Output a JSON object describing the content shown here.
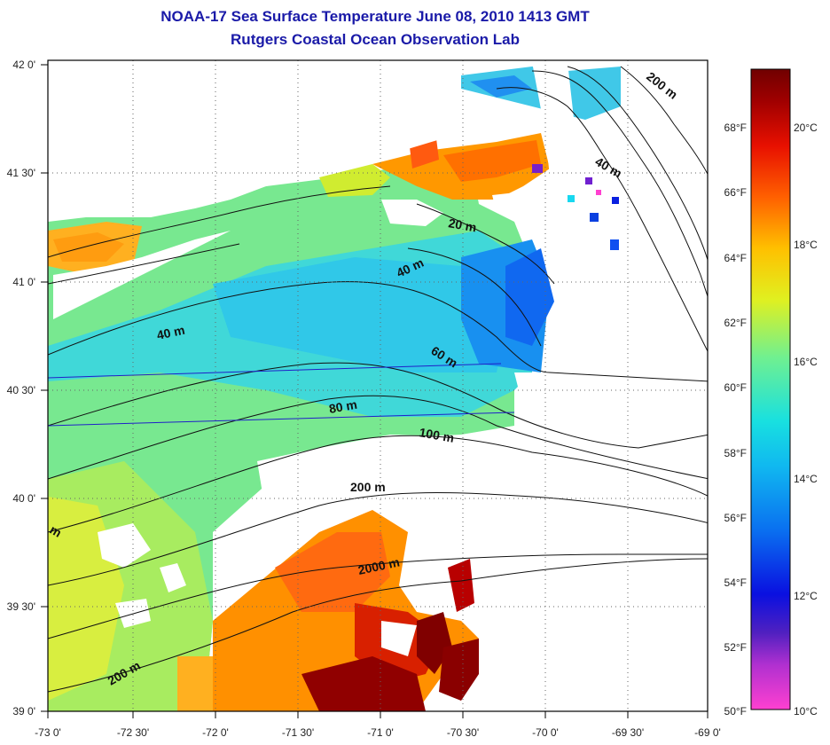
{
  "title": "NOAA-17 Sea Surface Temperature June 08, 2010 1413 GMT",
  "subtitle": "Rutgers Coastal Ocean Observation Lab",
  "lat_labels": [
    "42 0'",
    "41 30'",
    "41 0'",
    "40 30'",
    "40 0'",
    "39 30'",
    "39 0'"
  ],
  "lon_labels": [
    "-73 0'",
    "-72 30'",
    "-72 0'",
    "-71 30'",
    "-71 0'",
    "-70 30'",
    "-70 0'",
    "-69 30'",
    "-69 0'"
  ],
  "depth_labels": [
    "200 m",
    "40 m",
    "20 m",
    "40 m",
    "40 m",
    "60 m",
    "80 m",
    "100 m",
    "200 m",
    "2000 m",
    "200 m",
    "m"
  ],
  "colorbar": {
    "f_labels": [
      "68°F",
      "66°F",
      "64°F",
      "62°F",
      "60°F",
      "58°F",
      "56°F",
      "54°F",
      "52°F",
      "50°F"
    ],
    "c_labels": [
      "20°C",
      "18°C",
      "16°C",
      "14°C",
      "12°C",
      "10°C"
    ],
    "colors": [
      "#ff40d0",
      "#7a20c8",
      "#0a20e0",
      "#0a70f0",
      "#18d8f0",
      "#60f0a0",
      "#d8f020",
      "#ffb000",
      "#ff4000",
      "#c00000",
      "#700000"
    ]
  },
  "palette": {
    "land": "#ffffff",
    "cold": "#1870f0",
    "cool": "#30c8e8",
    "mid": "#60e0a8",
    "warm": "#c8e840",
    "hot": "#ff9000",
    "very_hot": "#c81000",
    "extreme": "#800000",
    "title_color": "#1a1aa8"
  }
}
